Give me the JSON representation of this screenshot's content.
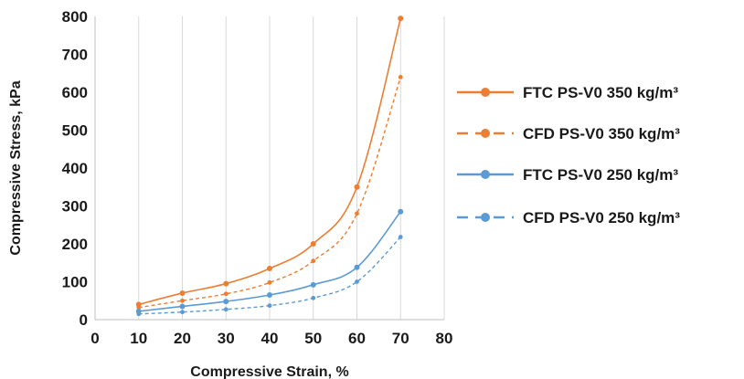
{
  "chart_data": {
    "type": "line",
    "xlabel": "Compressive Strain, %",
    "ylabel": "Compressive Stress, kPa",
    "xlim": [
      0,
      80
    ],
    "ylim": [
      0,
      800
    ],
    "xticks": [
      0,
      10,
      20,
      30,
      40,
      50,
      60,
      70,
      80
    ],
    "yticks": [
      0,
      100,
      200,
      300,
      400,
      500,
      600,
      700,
      800
    ],
    "grid": "vertical",
    "legend_position": "right",
    "x": [
      10,
      20,
      30,
      40,
      50,
      60,
      70
    ],
    "series": [
      {
        "name": "FTC PS-V0 350 kg/m³",
        "color": "#ED7D31",
        "style": "solid",
        "values": [
          40,
          70,
          95,
          135,
          200,
          350,
          795
        ]
      },
      {
        "name": "CFD PS-V0 350 kg/m³",
        "color": "#ED7D31",
        "style": "dashed",
        "values": [
          32,
          50,
          68,
          98,
          155,
          280,
          640
        ]
      },
      {
        "name": "FTC PS-V0 250 kg/m³",
        "color": "#5B9BD5",
        "style": "solid",
        "values": [
          22,
          35,
          48,
          65,
          92,
          138,
          285
        ]
      },
      {
        "name": "CFD PS-V0 250 kg/m³",
        "color": "#5B9BD5",
        "style": "dashed",
        "values": [
          15,
          20,
          27,
          37,
          57,
          100,
          218
        ]
      }
    ]
  }
}
